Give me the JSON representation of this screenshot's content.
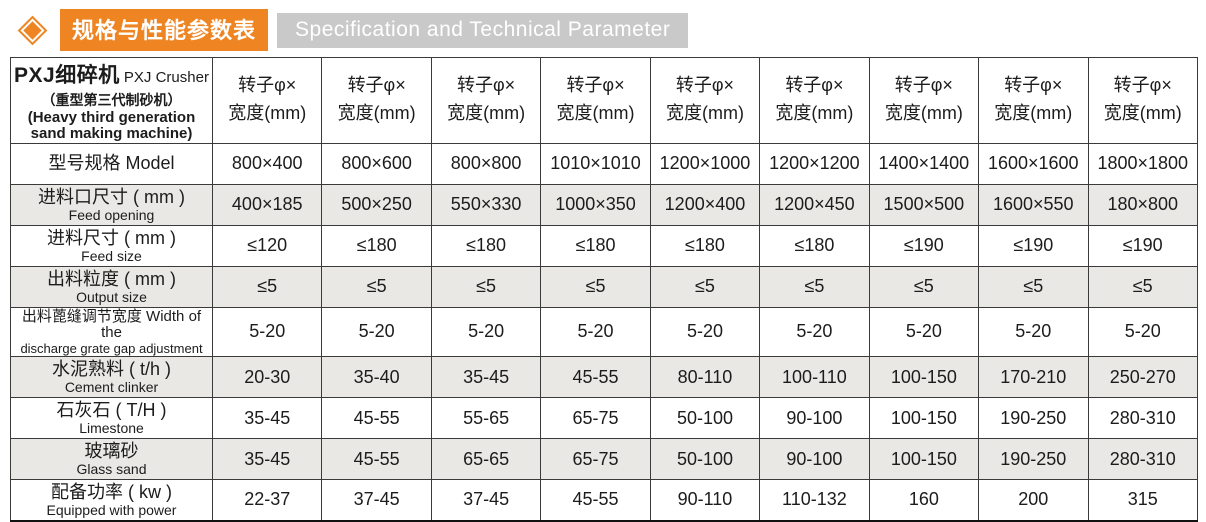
{
  "header": {
    "title_cn": "规格与性能参数表",
    "title_en": "Specification and Technical Parameter",
    "accent_color": "#ee8522",
    "band_gray_color": "#c9c9c9"
  },
  "table": {
    "shaded_row_color": "#e9e8e5",
    "corner": {
      "title_cn": "PXJ细碎机",
      "title_en": "PXJ Crusher",
      "sub_cn": "（重型第三代制砂机）",
      "sub_en1": "(Heavy third generation",
      "sub_en2": "sand making machine)"
    },
    "column_header": {
      "line1": "转子φ×",
      "line2": "宽度(mm)"
    },
    "rows": [
      {
        "label_line1": "型号规格 Model",
        "label_line2": "",
        "values": [
          "800×400",
          "800×600",
          "800×800",
          "1010×1010",
          "1200×1000",
          "1200×1200",
          "1400×1400",
          "1600×1600",
          "1800×1800"
        ]
      },
      {
        "label_line1": "进料口尺寸 ( mm )",
        "label_line2": "Feed opening",
        "values": [
          "400×185",
          "500×250",
          "550×330",
          "1000×350",
          "1200×400",
          "1200×450",
          "1500×500",
          "1600×550",
          "180×800"
        ]
      },
      {
        "label_line1": "进料尺寸 ( mm )",
        "label_line2": "Feed size",
        "values": [
          "≤120",
          "≤180",
          "≤180",
          "≤180",
          "≤180",
          "≤180",
          "≤190",
          "≤190",
          "≤190"
        ]
      },
      {
        "label_line1": "出料粒度 ( mm )",
        "label_line2": "Output size",
        "values": [
          "≤5",
          "≤5",
          "≤5",
          "≤5",
          "≤5",
          "≤5",
          "≤5",
          "≤5",
          "≤5"
        ]
      },
      {
        "label_line1": "出料蓖缝调节宽度 Width of the",
        "label_line2": "discharge grate gap adjustment",
        "values": [
          "5-20",
          "5-20",
          "5-20",
          "5-20",
          "5-20",
          "5-20",
          "5-20",
          "5-20",
          "5-20"
        ]
      },
      {
        "label_line1": "水泥熟料 ( t/h )",
        "label_line2": "Cement clinker",
        "values": [
          "20-30",
          "35-40",
          "35-45",
          "45-55",
          "80-110",
          "100-110",
          "100-150",
          "170-210",
          "250-270"
        ]
      },
      {
        "label_line1": "石灰石 ( T/H )",
        "label_line2": "Limestone",
        "values": [
          "35-45",
          "45-55",
          "55-65",
          "65-75",
          "50-100",
          "90-100",
          "100-150",
          "190-250",
          "280-310"
        ]
      },
      {
        "label_line1": "玻璃砂",
        "label_line2": "Glass sand",
        "values": [
          "35-45",
          "45-55",
          "65-65",
          "65-75",
          "50-100",
          "90-100",
          "100-150",
          "190-250",
          "280-310"
        ]
      },
      {
        "label_line1": "配备功率 ( kw )",
        "label_line2": "Equipped with power",
        "values": [
          "22-37",
          "37-45",
          "37-45",
          "45-55",
          "90-110",
          "110-132",
          "160",
          "200",
          "315"
        ]
      }
    ]
  }
}
